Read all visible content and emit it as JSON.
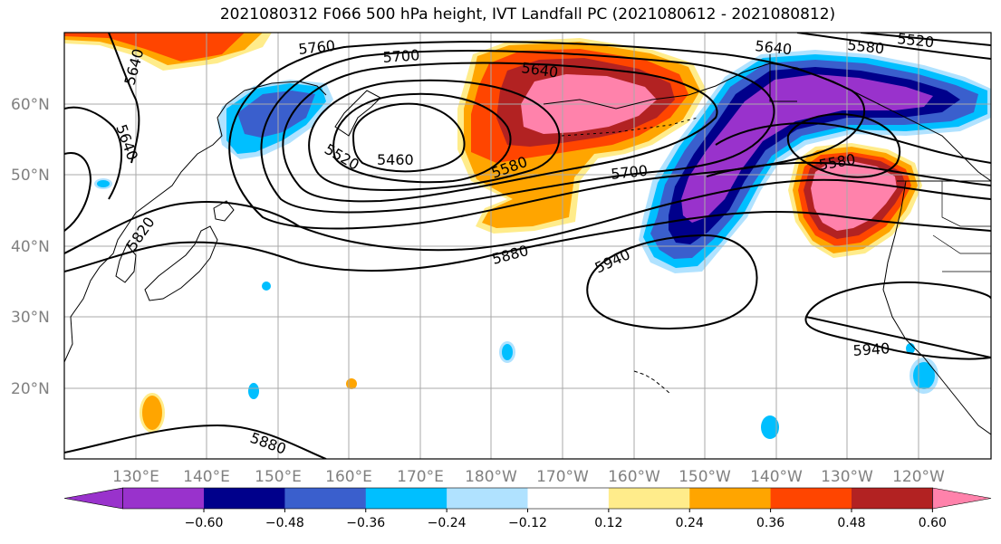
{
  "title": "2021080312 F066 500 hPa height, IVT Landfall PC (2021080612 - 2021080812)",
  "lat_labels": [
    "60°N",
    "50°N",
    "40°N",
    "30°N",
    "20°N"
  ],
  "lon_labels": [
    "130°E",
    "140°E",
    "150°E",
    "160°E",
    "170°E",
    "180°W",
    "170°W",
    "160°W",
    "150°W",
    "140°W",
    "130°W",
    "120°W"
  ],
  "colorbar": {
    "tick_labels": [
      "−0.60",
      "−0.48",
      "−0.36",
      "−0.24",
      "−0.12",
      "0.12",
      "0.24",
      "0.36",
      "0.48",
      "0.60"
    ],
    "colors": [
      "#9932CC",
      "#00008B",
      "#3A5FCD",
      "#00BFFF",
      "#B0E2FF",
      "#FFFFFF",
      "#FFEC8B",
      "#FFA500",
      "#FF4500",
      "#B22222",
      "#FF82AB"
    ]
  },
  "contour_labels": [
    "5760",
    "5700",
    "5640",
    "5580",
    "5520",
    "5640",
    "5640",
    "5520",
    "5460",
    "5580",
    "5700",
    "5640",
    "5580",
    "5820",
    "5880",
    "5940",
    "5940",
    "5880"
  ],
  "colors": {
    "fill_orange": "#FFA500",
    "fill_red": "#B22222",
    "fill_pink": "#FF82AB",
    "fill_purple": "#9932CC",
    "fill_navy": "#00008B",
    "fill_blue": "#3A5FCD",
    "fill_cyan": "#00BFFF"
  }
}
